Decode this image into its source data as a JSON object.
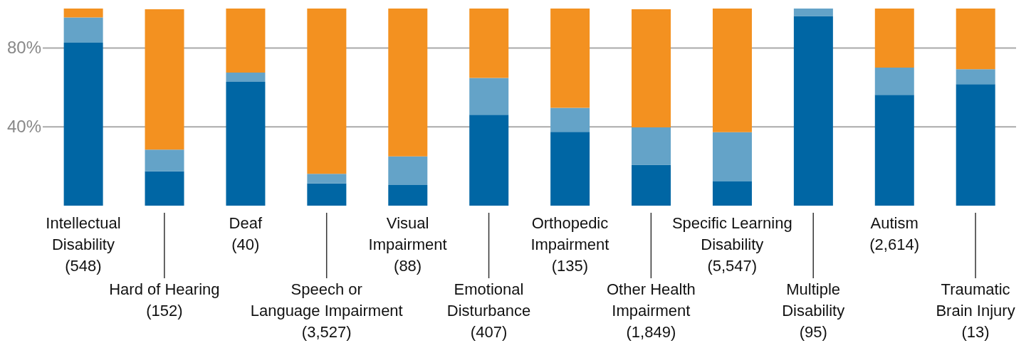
{
  "chart_data": {
    "type": "bar",
    "stacked": true,
    "relative": false,
    "categories": [
      "Intellectual\nDisability\n(548)",
      "Hard of Hearing\n(152)",
      "Deaf\n(40)",
      "Speech or\nLanguage Impairment\n(3,527)",
      "Visual\nImpairment\n(88)",
      "Emotional\nDisturbance\n(407)",
      "Orthopedic\nImpairment\n(135)",
      "Other Health\nImpairment\n(1,849)",
      "Specific Learning\nDisability\n(5,547)",
      "Multiple\nDisability\n(95)",
      "Autism\n(2,614)",
      "Traumatic\nBrain Injury\n(13)"
    ],
    "series": [
      {
        "color": "#0066a4",
        "values": [
          82.7,
          17.4,
          62.8,
          11.3,
          10.5,
          46.1,
          37.5,
          20.8,
          12.3,
          96.2,
          56.2,
          61.6
        ]
      },
      {
        "color": "#64a3c8",
        "values": [
          12.8,
          11.0,
          4.7,
          4.9,
          14.5,
          18.7,
          12.1,
          18.9,
          25.0,
          3.8,
          13.8,
          7.6
        ]
      },
      {
        "color": "#f39120",
        "values": [
          4.5,
          71.2,
          32.5,
          83.8,
          75.0,
          35.2,
          50.4,
          59.9,
          62.7,
          0,
          30.0,
          30.8
        ]
      }
    ],
    "ylim": [
      0,
      100
    ],
    "yticks": [
      {
        "value": 40,
        "label": "40%"
      },
      {
        "value": 80,
        "label": "80%"
      }
    ],
    "grid": "y",
    "legend": false
  }
}
